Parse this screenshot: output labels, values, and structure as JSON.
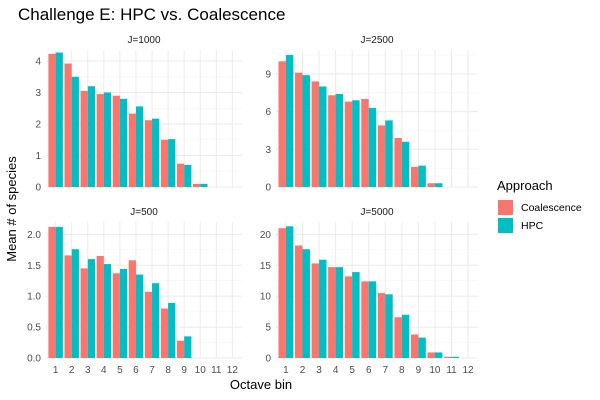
{
  "chart_data": {
    "type": "bar",
    "title": "Challenge E: HPC vs. Coalescence",
    "xlabel": "Octave bin",
    "ylabel": "Mean # of species",
    "legend": {
      "title": "Approach",
      "position": "right",
      "entries": [
        {
          "name": "Coalescence",
          "color": "#F8766D"
        },
        {
          "name": "HPC",
          "color": "#00BFC4"
        }
      ]
    },
    "categories": [
      "1",
      "2",
      "3",
      "4",
      "5",
      "6",
      "7",
      "8",
      "9",
      "10",
      "11",
      "12"
    ],
    "grid": true,
    "facets": [
      {
        "label": "J=1000",
        "ylim": [
          0,
          4.35
        ],
        "yticks": [
          0,
          1,
          2,
          3,
          4
        ],
        "series": [
          {
            "name": "Coalescence",
            "values": [
              4.23,
              3.92,
              3.05,
              2.95,
              2.9,
              2.33,
              2.12,
              1.5,
              0.74,
              0.1,
              0,
              0
            ]
          },
          {
            "name": "HPC",
            "values": [
              4.27,
              3.5,
              3.2,
              3.0,
              2.8,
              2.56,
              2.17,
              1.52,
              0.7,
              0.1,
              0,
              0
            ]
          }
        ]
      },
      {
        "label": "J=2500",
        "ylim": [
          0,
          10.9
        ],
        "yticks": [
          0,
          3,
          6,
          9
        ],
        "series": [
          {
            "name": "Coalescence",
            "values": [
              10.0,
              9.1,
              8.4,
              7.3,
              6.8,
              7.0,
              4.9,
              3.9,
              1.6,
              0.3,
              0,
              0
            ]
          },
          {
            "name": "HPC",
            "values": [
              10.5,
              8.9,
              8.0,
              7.4,
              6.9,
              6.3,
              5.3,
              3.6,
              1.7,
              0.3,
              0,
              0
            ]
          }
        ]
      },
      {
        "label": "J=500",
        "ylim": [
          0,
          2.2
        ],
        "yticks": [
          0.0,
          0.5,
          1.0,
          1.5,
          2.0
        ],
        "series": [
          {
            "name": "Coalescence",
            "values": [
              2.12,
              1.66,
              1.45,
              1.65,
              1.37,
              1.58,
              1.07,
              0.8,
              0.28,
              0,
              0,
              0
            ]
          },
          {
            "name": "HPC",
            "values": [
              2.12,
              1.76,
              1.6,
              1.52,
              1.44,
              1.35,
              1.21,
              0.89,
              0.35,
              0,
              0,
              0
            ]
          }
        ]
      },
      {
        "label": "J=5000",
        "ylim": [
          0,
          22
        ],
        "yticks": [
          0,
          5,
          10,
          15,
          20
        ],
        "series": [
          {
            "name": "Coalescence",
            "values": [
              21.0,
              18.2,
              15.3,
              14.7,
              13.2,
              12.4,
              10.5,
              6.6,
              3.8,
              0.9,
              0.2,
              0
            ]
          },
          {
            "name": "HPC",
            "values": [
              21.3,
              17.6,
              15.9,
              14.7,
              13.9,
              12.4,
              10.3,
              7.0,
              3.3,
              0.9,
              0.2,
              0
            ]
          }
        ]
      }
    ]
  }
}
